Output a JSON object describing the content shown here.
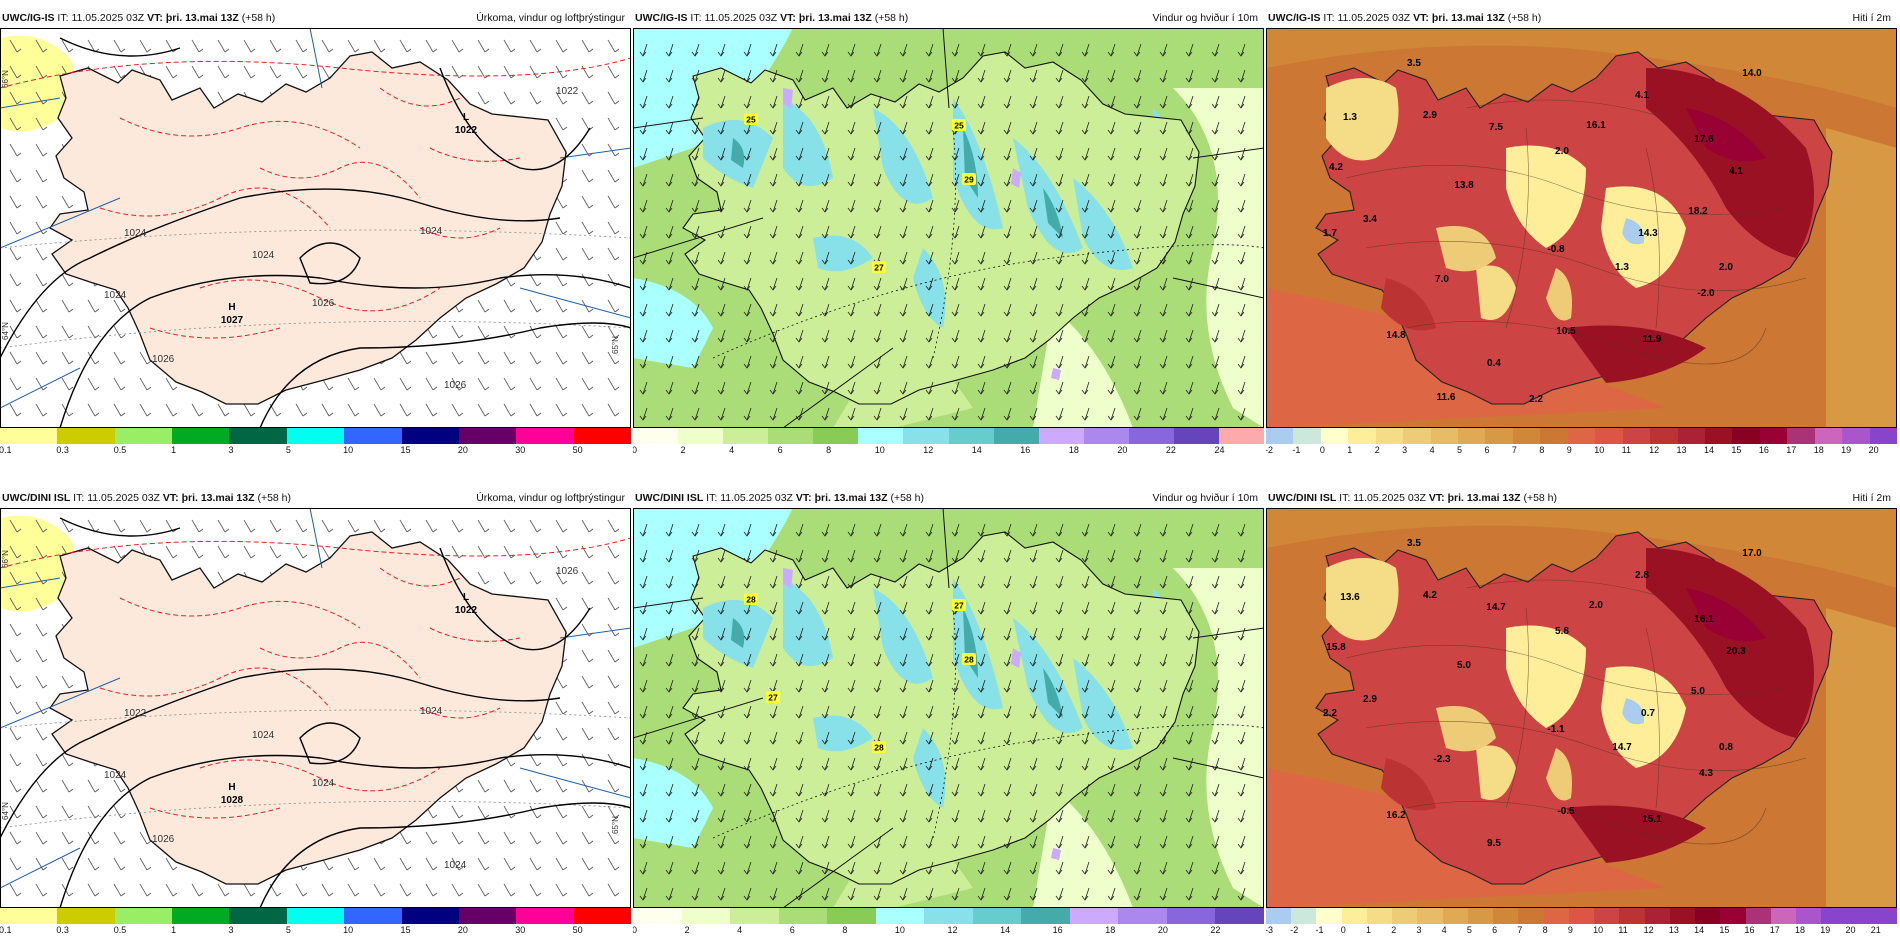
{
  "rows": [
    {
      "model_label": "UWC/IG-IS",
      "panels": [
        {
          "kind": "precip",
          "it_label": "IT:",
          "it_value": "11.05.2025 03Z",
          "vt_label": "VT:",
          "vt_value": "þri. 13.mai 13Z",
          "lead": "(+58 h)",
          "title": "Úrkoma, vindur og loftþrýstingur",
          "highs": [
            {
              "type": "H",
              "value": "1027"
            }
          ],
          "lows": [
            {
              "type": "L",
              "value": "1022"
            }
          ],
          "isobar_labels": [
            "1024",
            "1024",
            "1026",
            "1026",
            "1026",
            "1024",
            "1022",
            "1024"
          ],
          "side_labels": [
            "66°N",
            "64°N",
            "65°N"
          ],
          "legend_ticks": [
            "0.1",
            "0.3",
            "0.5",
            "1",
            "3",
            "5",
            "10",
            "15",
            "20",
            "30",
            "50"
          ]
        },
        {
          "kind": "wind",
          "it_label": "IT:",
          "it_value": "11.05.2025 03Z",
          "vt_label": "VT:",
          "vt_value": "þri. 13.mai 13Z",
          "lead": "(+58 h)",
          "title": "Vindur og hviður í 10m",
          "gusts": [
            "25",
            "25",
            "29",
            "27"
          ],
          "legend_ticks": [
            "0",
            "2",
            "4",
            "6",
            "8",
            "10",
            "12",
            "14",
            "16",
            "18",
            "20",
            "22",
            "24"
          ]
        },
        {
          "kind": "temp",
          "it_label": "IT:",
          "it_value": "11.05.2025 03Z",
          "vt_label": "VT:",
          "vt_value": "þri. 13.mai 13Z",
          "lead": "(+58 h)",
          "title": "Hiti í 2m",
          "temps": [
            "3.5",
            "14.0",
            "1.3",
            "2.9",
            "4.1",
            "7.5",
            "16.1",
            "17.6",
            "4.2",
            "13.8",
            "2.0",
            "4.1",
            "18.2",
            "3.4",
            "1.7",
            "14.3",
            "-0.8",
            "2.0",
            "7.0",
            "1.3",
            "-2.0",
            "14.8",
            "10.5",
            "11.9",
            "0.4",
            "2.2",
            "11.6"
          ],
          "legend_ticks": [
            "-2",
            "-1",
            "0",
            "1",
            "2",
            "3",
            "4",
            "5",
            "6",
            "7",
            "8",
            "9",
            "10",
            "11",
            "12",
            "13",
            "14",
            "15",
            "16",
            "17",
            "18",
            "19",
            "20"
          ]
        }
      ]
    },
    {
      "model_label": "UWC/DINI ISL",
      "panels": [
        {
          "kind": "precip",
          "it_label": "IT:",
          "it_value": "11.05.2025 03Z",
          "vt_label": "VT:",
          "vt_value": "þri. 13.mai 13Z",
          "lead": "(+58 h)",
          "title": "Úrkoma, vindur og loftþrýstingur",
          "highs": [
            {
              "type": "H",
              "value": "1028"
            }
          ],
          "lows": [
            {
              "type": "L",
              "value": "1022"
            }
          ],
          "isobar_labels": [
            "1022",
            "1024",
            "1024",
            "1026",
            "1024",
            "1024",
            "1026",
            "1024"
          ],
          "side_labels": [
            "66°N",
            "64°N",
            "65°N"
          ],
          "legend_ticks": [
            "0.1",
            "0.3",
            "0.5",
            "1",
            "3",
            "5",
            "10",
            "15",
            "20",
            "30",
            "50"
          ]
        },
        {
          "kind": "wind",
          "it_label": "IT:",
          "it_value": "11.05.2025 03Z",
          "vt_label": "VT:",
          "vt_value": "þri. 13.mai 13Z",
          "lead": "(+58 h)",
          "title": "Vindur og hviður í 10m",
          "gusts": [
            "28",
            "27",
            "28",
            "28",
            "27"
          ],
          "legend_ticks": [
            "0",
            "2",
            "4",
            "6",
            "8",
            "10",
            "12",
            "14",
            "16",
            "18",
            "20",
            "22"
          ]
        },
        {
          "kind": "temp",
          "it_label": "IT:",
          "it_value": "11.05.2025 03Z",
          "vt_label": "VT:",
          "vt_value": "þri. 13.mai 13Z",
          "lead": "(+58 h)",
          "title": "Hiti í 2m",
          "temps": [
            "3.5",
            "17.0",
            "13.6",
            "4.2",
            "2.8",
            "14.7",
            "2.0",
            "16.1",
            "15.8",
            "5.0",
            "5.8",
            "20.3",
            "5.0",
            "2.9",
            "2.2",
            "0.7",
            "-1.1",
            "0.8",
            "-2.3",
            "14.7",
            "4.3",
            "16.2",
            "-0.5",
            "15.1",
            "9.5"
          ],
          "legend_ticks": [
            "-3",
            "-2",
            "-1",
            "0",
            "1",
            "2",
            "3",
            "4",
            "5",
            "6",
            "7",
            "8",
            "9",
            "10",
            "11",
            "12",
            "13",
            "14",
            "15",
            "16",
            "17",
            "18",
            "19",
            "20",
            "21"
          ]
        }
      ]
    }
  ],
  "colors": {
    "precip": [
      "#ffff99",
      "#cccc00",
      "#99ee66",
      "#00aa22",
      "#006644",
      "#00ffee",
      "#3366ff",
      "#000080",
      "#660066",
      "#ff0099",
      "#ff0000"
    ],
    "wind": [
      "#ffffee",
      "#eeffcc",
      "#ccee99",
      "#aadd77",
      "#88cc55",
      "#aaffff",
      "#88e0e8",
      "#66cccc",
      "#44aaaa",
      "#ccaaff",
      "#aa88ee",
      "#8866dd",
      "#6644bb",
      "#ffaaaa"
    ],
    "temp": [
      "#aaccee",
      "#cce8dd",
      "#ffffcc",
      "#ffee99",
      "#f5dd88",
      "#eecc77",
      "#e8bb66",
      "#e0aa55",
      "#d89944",
      "#d08838",
      "#cc7733",
      "#dd6644",
      "#dd5544",
      "#cc4444",
      "#bb3333",
      "#aa2233",
      "#991122",
      "#880022",
      "#990033",
      "#aa3377",
      "#cc66bb",
      "#aa55cc",
      "#8844cc"
    ],
    "land_precip": "#fde8dc",
    "isobar": "#000000",
    "precip_contour": "#dd2222",
    "grid_line": "#1f5fa8"
  },
  "icons": {
    "wind_symbol": "wind-barb-icon",
    "arrow_symbol": "wind-arrow-icon"
  }
}
